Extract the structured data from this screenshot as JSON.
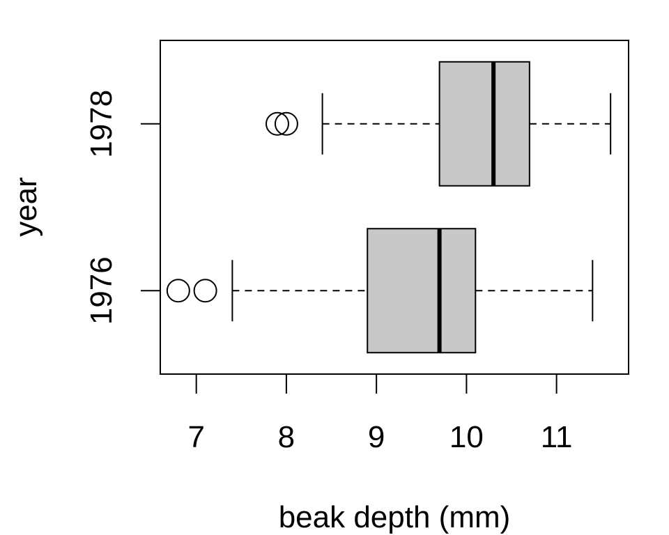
{
  "chart_data": {
    "type": "boxplot",
    "orientation": "horizontal",
    "xlabel": "beak depth (mm)",
    "ylabel": "year",
    "xlim": [
      6.6,
      11.8
    ],
    "x_ticks": [
      7,
      8,
      9,
      10,
      11
    ],
    "categories": [
      "1976",
      "1978"
    ],
    "boxes": [
      {
        "category": "1976",
        "whisker_low": 7.4,
        "q1": 8.9,
        "median": 9.7,
        "q3": 10.1,
        "whisker_high": 11.4,
        "outliers": [
          6.8,
          7.1
        ]
      },
      {
        "category": "1978",
        "whisker_low": 8.4,
        "q1": 9.7,
        "median": 10.3,
        "q3": 10.7,
        "whisker_high": 11.6,
        "outliers": [
          7.9,
          8.0
        ]
      }
    ],
    "colors": {
      "box_fill": "#c8c8c8",
      "stroke": "#000000"
    },
    "grid": false,
    "legend": "none"
  }
}
